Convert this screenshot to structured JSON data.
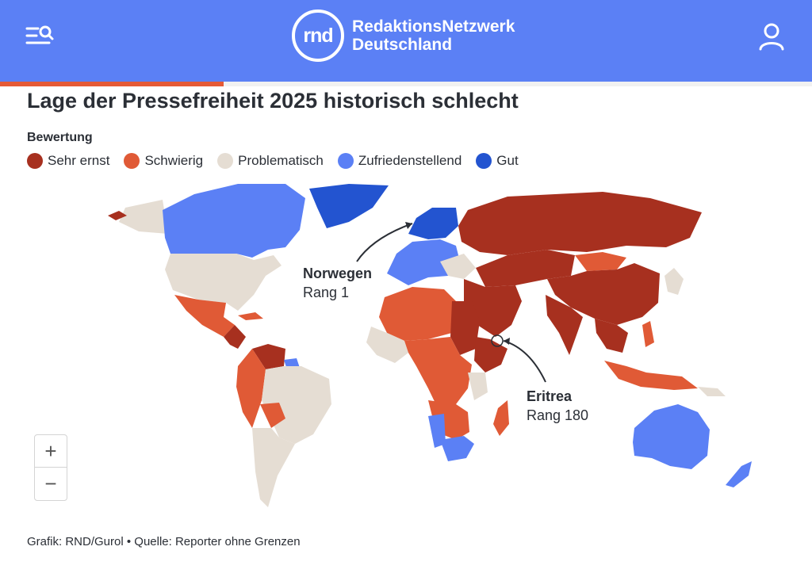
{
  "header": {
    "brand_short": "rnd",
    "brand_line1": "RedaktionsNetzwerk",
    "brand_line2": "Deutschland",
    "menu_icon": "menu-search-icon",
    "user_icon": "user-icon",
    "color": "#5b80f5",
    "reading_progress": 0.275
  },
  "article": {
    "title": "Lage der Pressefreiheit 2025 historisch schlecht"
  },
  "legend": {
    "title": "Bewertung",
    "items": [
      {
        "label": "Sehr ernst",
        "color": "#a7301f"
      },
      {
        "label": "Schwierig",
        "color": "#e05a36"
      },
      {
        "label": "Problematisch",
        "color": "#e5ddd3"
      },
      {
        "label": "Zufriedenstellend",
        "color": "#5b80f5"
      },
      {
        "label": "Gut",
        "color": "#2354d0"
      }
    ]
  },
  "annotations": {
    "norway": {
      "name": "Norwegen",
      "rank": "Rang 1"
    },
    "eritrea": {
      "name": "Eritrea",
      "rank": "Rang 180"
    }
  },
  "zoom": {
    "in": "+",
    "out": "−"
  },
  "credit": "Grafik: RND/Gurol • Quelle: Reporter ohne Grenzen"
}
